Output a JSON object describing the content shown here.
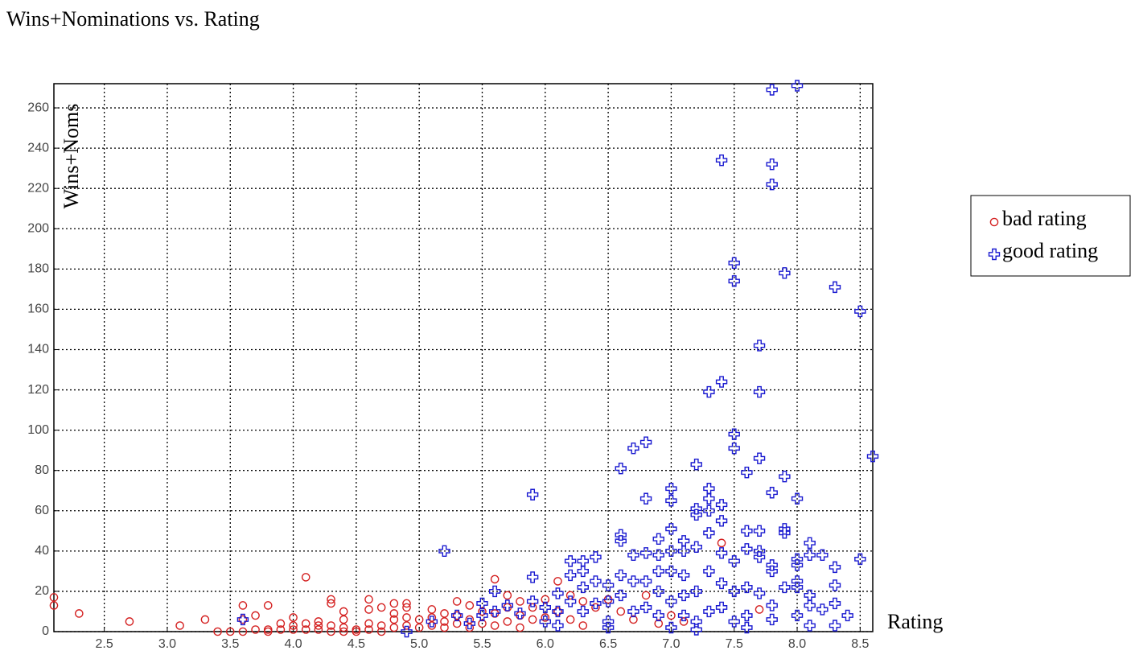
{
  "chart_data": {
    "type": "scatter",
    "title": "Wins+Nominations vs. Rating",
    "x_label": "Rating",
    "y_label": "Wins+Noms",
    "xlim": [
      2.1,
      8.6
    ],
    "ylim": [
      0,
      272
    ],
    "xticks": [
      2.5,
      {
        "value": 3,
        "label": "3.0"
      },
      3.5,
      {
        "value": 4,
        "label": "4.0"
      },
      4.5,
      {
        "value": 5,
        "label": "5.0"
      },
      5.5,
      {
        "value": 6,
        "label": "6.0"
      },
      6.5,
      {
        "value": 7,
        "label": "7.0"
      },
      7.5,
      {
        "value": 8,
        "label": "8.0"
      },
      8.5
    ],
    "yticks": [
      0,
      20,
      40,
      60,
      80,
      100,
      120,
      140,
      160,
      180,
      200,
      220,
      240,
      260
    ],
    "grid": true,
    "legend": "right",
    "series": [
      {
        "name": "bad rating",
        "color": "#d42020",
        "marker": "circle",
        "x": [
          2.1,
          2.1,
          2.3,
          2.7,
          3.1,
          3.3,
          3.4,
          3.5,
          3.6,
          3.6,
          3.6,
          3.7,
          3.7,
          3.8,
          3.8,
          3.8,
          3.9,
          3.9,
          4.0,
          4.0,
          4.0,
          4.1,
          4.1,
          4.1,
          4.2,
          4.2,
          4.2,
          4.3,
          4.3,
          4.3,
          4.3,
          4.4,
          4.4,
          4.4,
          4.4,
          4.5,
          4.5,
          4.6,
          4.6,
          4.6,
          4.6,
          4.7,
          4.7,
          4.7,
          4.8,
          4.8,
          4.8,
          4.8,
          4.9,
          4.9,
          4.9,
          4.9,
          5.0,
          5.0,
          5.1,
          5.1,
          5.1,
          5.2,
          5.2,
          5.2,
          5.3,
          5.3,
          5.3,
          5.4,
          5.4,
          5.4,
          5.5,
          5.5,
          5.6,
          5.6,
          5.6,
          5.7,
          5.7,
          5.7,
          5.8,
          5.8,
          5.8,
          5.9,
          5.9,
          6.0,
          6.0,
          6.1,
          6.1,
          6.2,
          6.2,
          6.3,
          6.3,
          6.4,
          6.5,
          6.6,
          6.7,
          6.8,
          6.9,
          7.0,
          7.1,
          7.4,
          7.7
        ],
        "values": [
          17,
          13,
          9,
          5,
          3,
          6,
          0,
          0,
          13,
          6,
          0,
          8,
          1,
          13,
          1,
          0,
          4,
          1,
          7,
          3,
          1,
          27,
          4,
          1,
          5,
          3,
          1,
          16,
          14,
          3,
          0,
          10,
          6,
          2,
          0,
          1,
          0,
          16,
          11,
          4,
          1,
          12,
          3,
          0,
          14,
          9,
          6,
          2,
          14,
          12,
          7,
          3,
          6,
          2,
          11,
          7,
          3,
          9,
          5,
          2,
          15,
          8,
          4,
          13,
          6,
          2,
          10,
          4,
          26,
          9,
          3,
          18,
          12,
          5,
          15,
          8,
          2,
          12,
          6,
          16,
          7,
          25,
          10,
          18,
          6,
          15,
          3,
          12,
          16,
          10,
          6,
          18,
          4,
          8,
          5,
          44,
          11
        ]
      },
      {
        "name": "good rating",
        "color": "#1a1ad0",
        "marker": "plus",
        "x": [
          3.6,
          4.9,
          5.1,
          5.2,
          5.3,
          5.4,
          5.5,
          5.5,
          5.6,
          5.6,
          5.7,
          5.8,
          5.9,
          5.9,
          5.9,
          6.0,
          6.0,
          6.1,
          6.1,
          6.1,
          6.2,
          6.2,
          6.2,
          6.3,
          6.3,
          6.3,
          6.3,
          6.4,
          6.4,
          6.4,
          6.5,
          6.5,
          6.5,
          6.5,
          6.6,
          6.6,
          6.6,
          6.6,
          6.6,
          6.7,
          6.7,
          6.7,
          6.7,
          6.8,
          6.8,
          6.8,
          6.8,
          6.8,
          6.9,
          6.9,
          6.9,
          6.9,
          6.9,
          7.0,
          7.0,
          7.0,
          7.0,
          7.0,
          7.0,
          7.0,
          7.1,
          7.1,
          7.1,
          7.1,
          7.1,
          7.2,
          7.2,
          7.2,
          7.2,
          7.2,
          7.2,
          7.2,
          7.3,
          7.3,
          7.3,
          7.3,
          7.3,
          7.3,
          7.3,
          7.4,
          7.4,
          7.4,
          7.4,
          7.4,
          7.4,
          7.4,
          7.5,
          7.5,
          7.5,
          7.5,
          7.5,
          7.5,
          7.5,
          7.6,
          7.6,
          7.6,
          7.6,
          7.6,
          7.6,
          7.7,
          7.7,
          7.7,
          7.7,
          7.7,
          7.7,
          7.7,
          7.8,
          7.8,
          7.8,
          7.8,
          7.8,
          7.8,
          7.8,
          7.8,
          7.9,
          7.9,
          7.9,
          7.9,
          7.9,
          8.0,
          8.0,
          8.0,
          8.0,
          8.0,
          8.0,
          8.0,
          8.1,
          8.1,
          8.1,
          8.1,
          8.1,
          8.2,
          8.2,
          8.3,
          8.3,
          8.3,
          8.3,
          8.3,
          8.4,
          8.5,
          8.5,
          8.6
        ],
        "values": [
          6,
          0,
          5,
          40,
          8,
          4,
          14,
          8,
          20,
          10,
          13,
          9,
          68,
          27,
          15,
          12,
          5,
          19,
          10,
          3,
          35,
          28,
          15,
          35,
          30,
          22,
          10,
          37,
          25,
          14,
          23,
          15,
          5,
          2,
          81,
          48,
          45,
          28,
          18,
          91,
          38,
          25,
          10,
          94,
          66,
          39,
          25,
          12,
          46,
          38,
          30,
          20,
          8,
          71,
          65,
          51,
          40,
          30,
          15,
          2,
          45,
          40,
          28,
          18,
          8,
          83,
          61,
          58,
          42,
          20,
          5,
          1,
          119,
          71,
          66,
          60,
          49,
          30,
          10,
          234,
          124,
          63,
          55,
          39,
          24,
          12,
          183,
          174,
          98,
          91,
          35,
          20,
          5,
          79,
          50,
          41,
          22,
          8,
          2,
          142,
          119,
          86,
          50,
          40,
          37,
          19,
          269,
          232,
          222,
          69,
          33,
          30,
          13,
          6,
          178,
          77,
          51,
          49,
          22,
          271,
          66,
          36,
          33,
          25,
          22,
          8,
          44,
          38,
          18,
          13,
          3,
          38,
          11,
          171,
          32,
          23,
          14,
          3,
          8,
          159,
          36,
          87
        ]
      }
    ]
  }
}
